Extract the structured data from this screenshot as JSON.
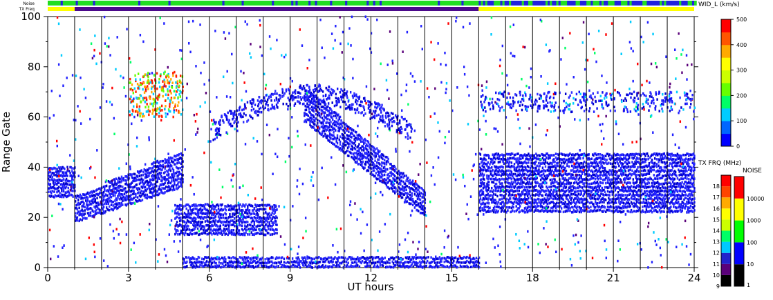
{
  "chart_data": {
    "type": "heatmap",
    "xlabel": "UT hours",
    "ylabel": "Range Gate",
    "xlim": [
      0,
      24
    ],
    "ylim": [
      0,
      100
    ],
    "x_ticks": [
      "0",
      "3",
      "6",
      "9",
      "12",
      "15",
      "18",
      "21",
      "24"
    ],
    "y_ticks": [
      "0",
      "20",
      "40",
      "60",
      "80",
      "100"
    ],
    "top_strips": {
      "noise_label": "Noise",
      "txfreq_label": "TX Freq",
      "txfreq_segments": [
        {
          "from": 0,
          "to": 1,
          "color": "#ffff00"
        },
        {
          "from": 1,
          "to": 16,
          "color": "#4b0a8c"
        },
        {
          "from": 16,
          "to": 24,
          "color": "#ffff00"
        }
      ]
    },
    "series_bands": [
      {
        "name": "near-range band",
        "x": [
          0,
          1.0
        ],
        "gates": [
          28,
          40
        ]
      },
      {
        "name": "morning rising band",
        "x": [
          1.0,
          5.0
        ],
        "gates_start": [
          18,
          28
        ],
        "gates_end": [
          32,
          46
        ]
      },
      {
        "name": "E-region band",
        "x": [
          4.7,
          8.5
        ],
        "gates": [
          13,
          25
        ]
      },
      {
        "name": "near-ground echoes",
        "x": [
          5.0,
          16.0
        ],
        "gates": [
          0,
          4
        ]
      },
      {
        "name": "evening descending band",
        "x": [
          9.5,
          14.0
        ],
        "gates_start": [
          58,
          72
        ],
        "gates_end": [
          20,
          30
        ]
      },
      {
        "name": "F-region band",
        "x": [
          16.0,
          24.0
        ],
        "gates": [
          22,
          45
        ]
      }
    ],
    "widths_colorbar": {
      "title": "WID_L (km/s)",
      "ticks": [
        "0",
        "100",
        "200",
        "300",
        "400",
        "500"
      ],
      "range": [
        0,
        500
      ],
      "colors": [
        "#0000ff",
        "#0066ff",
        "#00ccff",
        "#00ff66",
        "#66ff00",
        "#ccff00",
        "#ffff00",
        "#ffaa00",
        "#ff5500",
        "#ff0000"
      ]
    },
    "txfreq_colorbar": {
      "title": "TX FRQ (MHz)",
      "ticks": [
        "9",
        "10",
        "11",
        "12",
        "13",
        "14",
        "15",
        "16",
        "17",
        "18"
      ],
      "colors": [
        "#000000",
        "#5a007a",
        "#2222cc",
        "#00c8ff",
        "#00ff66",
        "#ccff00",
        "#ffff00",
        "#ffaa00",
        "#ff4400",
        "#ff0000"
      ]
    },
    "noise_colorbar": {
      "title": "NOISE",
      "ticks": [
        "1",
        "10",
        "100",
        "1000",
        "10000"
      ],
      "colors": [
        "#000000",
        "#0000ff",
        "#00ff00",
        "#ffff00",
        "#ff0000"
      ]
    }
  }
}
